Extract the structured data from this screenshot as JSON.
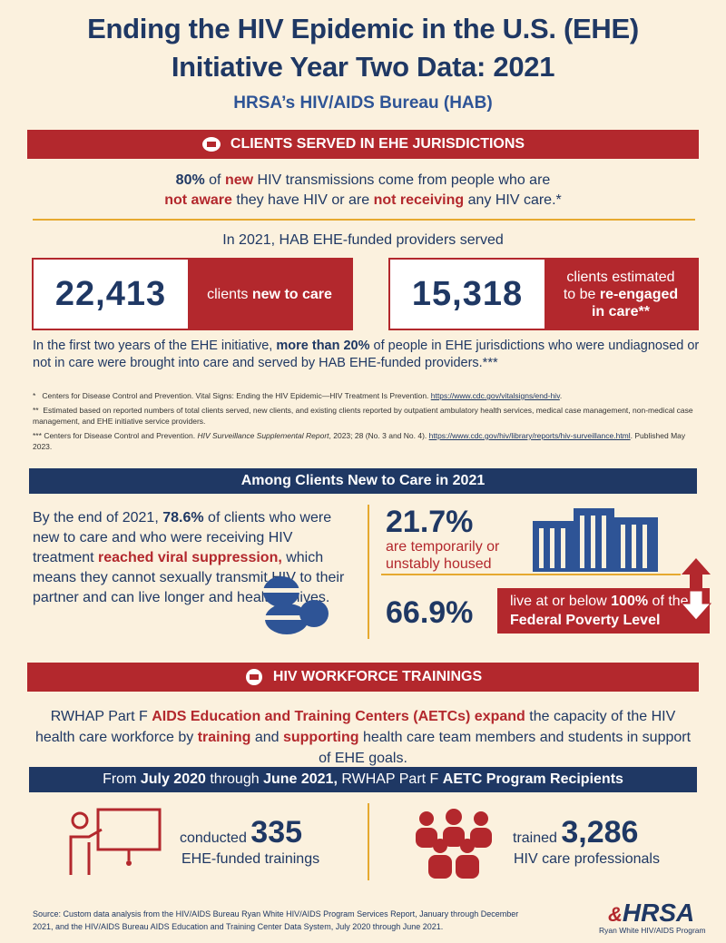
{
  "header": {
    "title_line1": "Ending the HIV Epidemic in the U.S. (EHE)",
    "title_line2": "Initiative Year Two Data: 2021",
    "subtitle": "HRSA’s HIV/AIDS Bureau (HAB)"
  },
  "clients": {
    "heading": "CLIENTS SERVED IN EHE JURISDICTIONS",
    "intro": [
      "80%",
      " of ",
      "new",
      " HIV transmissions come from people who are",
      "not aware",
      " they have HIV or are ",
      "not receiving",
      " any HIV care.*"
    ],
    "served_label": "In 2021, HAB EHE-funded providers served",
    "stat1": {
      "number": "22,413",
      "text": [
        "clients ",
        "new to care"
      ]
    },
    "stat2": {
      "number": "15,318",
      "text": [
        "clients estimated",
        "to be ",
        "re-engaged",
        "in care**"
      ]
    },
    "summary": [
      "In the first two years of the EHE initiative, ",
      "more than 20%",
      " of people in EHE jurisdictions who were undiagnosed or not in care were brought into care and served by HAB EHE-funded providers.***"
    ],
    "footnotes": [
      {
        "mark": "*",
        "text": "Centers for Disease Control and Prevention. Vital Signs: Ending the HIV Epidemic—HIV Treatment Is Prevention. ",
        "link": "https://www.cdc.gov/vitalsigns/end-hiv",
        "after": "."
      },
      {
        "mark": "**",
        "text": "Estimated based on reported numbers of total clients served, new clients, and existing clients reported by outpatient ambulatory health services, medical case management, non-medical case management, and EHE initiative service providers."
      },
      {
        "mark": "***",
        "text": "Centers for Disease Control and Prevention. ",
        "italic": "HIV Surveillance Supplemental Report",
        "text2": ", 2023; 28 (No. 3 and No. 4). ",
        "link": "https://www.cdc.gov/hiv/library/reports/hiv-surveillance.html",
        "after": ". Published May 2023."
      }
    ]
  },
  "new_to_care": {
    "heading": "Among Clients New to Care in 2021",
    "para": [
      "By the end of 2021, ",
      "78.6%",
      " of clients who were new to care and who were receiving HIV treatment ",
      "reached viral suppression,",
      " which means they cannot sexually transmit HIV to their partner and can live longer and healthier lives."
    ],
    "housing": {
      "number": "21.7%",
      "text": "are temporarily or unstably housed"
    },
    "poverty": {
      "number": "66.9%",
      "text": [
        "live at or below ",
        "100%",
        " of the ",
        "Federal Poverty Level"
      ]
    }
  },
  "workforce": {
    "heading": "HIV WORKFORCE TRAININGS",
    "para": [
      "RWHAP Part F ",
      "AIDS Education and Training Centers (AETCs) expand",
      " the capacity of the HIV health care workforce by ",
      "training",
      " and ",
      "supporting",
      " health care team members and students in support of EHE goals."
    ],
    "banner": [
      "From ",
      "July 2020",
      " through ",
      "June 2021,",
      " RWHAP Part F ",
      "AETC Program Recipients"
    ],
    "stat1": {
      "pre": "conducted",
      "number": "335",
      "text": "EHE-funded trainings"
    },
    "stat2": {
      "pre": "trained",
      "number": "3,286",
      "text": "HIV care professionals"
    }
  },
  "footer": {
    "source": "Source: Custom data analysis from the HIV/AIDS Bureau Ryan White HIV/AIDS Program Services Report, January through December 2021, and the HIV/AIDS Bureau AIDS Education and Training Center Data System, July 2020 through June 2021.",
    "logo": "HRSA",
    "logo_sub": "Ryan White HIV/AIDS Program"
  }
}
